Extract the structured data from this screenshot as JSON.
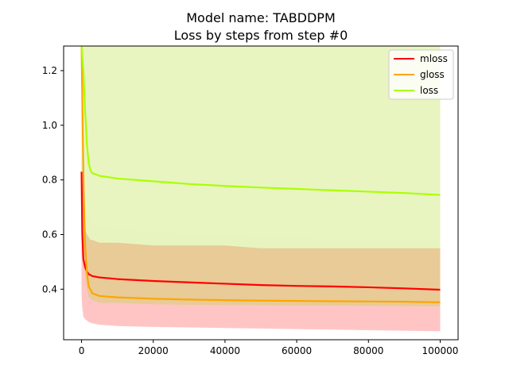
{
  "chart_data": {
    "type": "line",
    "title": "Model name: TABDDPM",
    "subtitle": "Loss by steps from step #0",
    "xlabel": "",
    "ylabel": "",
    "xlim": [
      -5000,
      105000
    ],
    "ylim": [
      0.215,
      1.29
    ],
    "x_ticks": [
      0,
      20000,
      40000,
      60000,
      80000,
      100000
    ],
    "x_tick_labels": [
      "0",
      "20000",
      "40000",
      "60000",
      "80000",
      "100000"
    ],
    "y_ticks": [
      0.4,
      0.6,
      0.8,
      1.0,
      1.2
    ],
    "y_tick_labels": [
      "0.4",
      "0.6",
      "0.8",
      "1.0",
      "1.2"
    ],
    "grid": false,
    "legend_position": "top-right",
    "series": [
      {
        "name": "mloss",
        "color": "#ff0000",
        "band_color": "#ffbfbf",
        "x": [
          0,
          200,
          500,
          1000,
          1500,
          2000,
          3000,
          5000,
          10000,
          20000,
          30000,
          40000,
          50000,
          60000,
          70000,
          80000,
          90000,
          100000
        ],
        "values": [
          0.83,
          0.6,
          0.51,
          0.48,
          0.465,
          0.455,
          0.448,
          0.443,
          0.437,
          0.43,
          0.425,
          0.42,
          0.415,
          0.412,
          0.41,
          0.407,
          0.403,
          0.398
        ],
        "band_low": [
          0.38,
          0.33,
          0.3,
          0.29,
          0.285,
          0.28,
          0.275,
          0.27,
          0.265,
          0.262,
          0.26,
          0.258,
          0.256,
          0.254,
          0.252,
          0.25,
          0.248,
          0.246
        ],
        "band_high": [
          1.1,
          0.9,
          0.8,
          0.72,
          0.68,
          0.66,
          0.64,
          0.63,
          0.62,
          0.61,
          0.6,
          0.6,
          0.59,
          0.59,
          0.58,
          0.58,
          0.58,
          0.58
        ]
      },
      {
        "name": "gloss",
        "color": "#ffa500",
        "band_color": "#e6cb90",
        "x": [
          0,
          300,
          600,
          1000,
          1500,
          2000,
          3000,
          5000,
          10000,
          20000,
          30000,
          40000,
          50000,
          60000,
          70000,
          80000,
          90000,
          100000
        ],
        "values": [
          1.29,
          1.0,
          0.75,
          0.56,
          0.46,
          0.41,
          0.385,
          0.375,
          0.37,
          0.365,
          0.362,
          0.36,
          0.358,
          0.357,
          0.356,
          0.355,
          0.354,
          0.352
        ],
        "band_low": [
          0.9,
          0.7,
          0.55,
          0.45,
          0.4,
          0.37,
          0.36,
          0.35,
          0.35,
          0.345,
          0.343,
          0.342,
          0.341,
          0.34,
          0.34,
          0.339,
          0.338,
          0.337
        ],
        "band_high": [
          1.29,
          1.29,
          1.29,
          1.29,
          1.29,
          1.29,
          1.29,
          1.29,
          1.29,
          1.29,
          1.29,
          1.29,
          1.29,
          1.29,
          1.29,
          1.29,
          1.29,
          1.29
        ]
      },
      {
        "name": "loss",
        "color": "#aaff00",
        "band_color": "#e8fcc8",
        "x": [
          0,
          200,
          500,
          1000,
          1500,
          2000,
          2500,
          3000,
          5000,
          10000,
          20000,
          30000,
          40000,
          50000,
          60000,
          70000,
          80000,
          90000,
          100000
        ],
        "values": [
          1.29,
          1.25,
          1.2,
          1.05,
          0.93,
          0.86,
          0.835,
          0.825,
          0.815,
          0.805,
          0.795,
          0.785,
          0.778,
          0.772,
          0.767,
          0.762,
          0.757,
          0.752,
          0.745
        ],
        "band_low": [
          0.9,
          0.8,
          0.7,
          0.62,
          0.6,
          0.59,
          0.58,
          0.58,
          0.57,
          0.57,
          0.56,
          0.56,
          0.56,
          0.55,
          0.55,
          0.55,
          0.55,
          0.55,
          0.55
        ],
        "band_high": [
          1.29,
          1.29,
          1.29,
          1.29,
          1.29,
          1.29,
          1.29,
          1.29,
          1.29,
          1.29,
          1.29,
          1.29,
          1.29,
          1.29,
          1.29,
          1.29,
          1.29,
          1.29,
          1.29
        ]
      }
    ]
  }
}
